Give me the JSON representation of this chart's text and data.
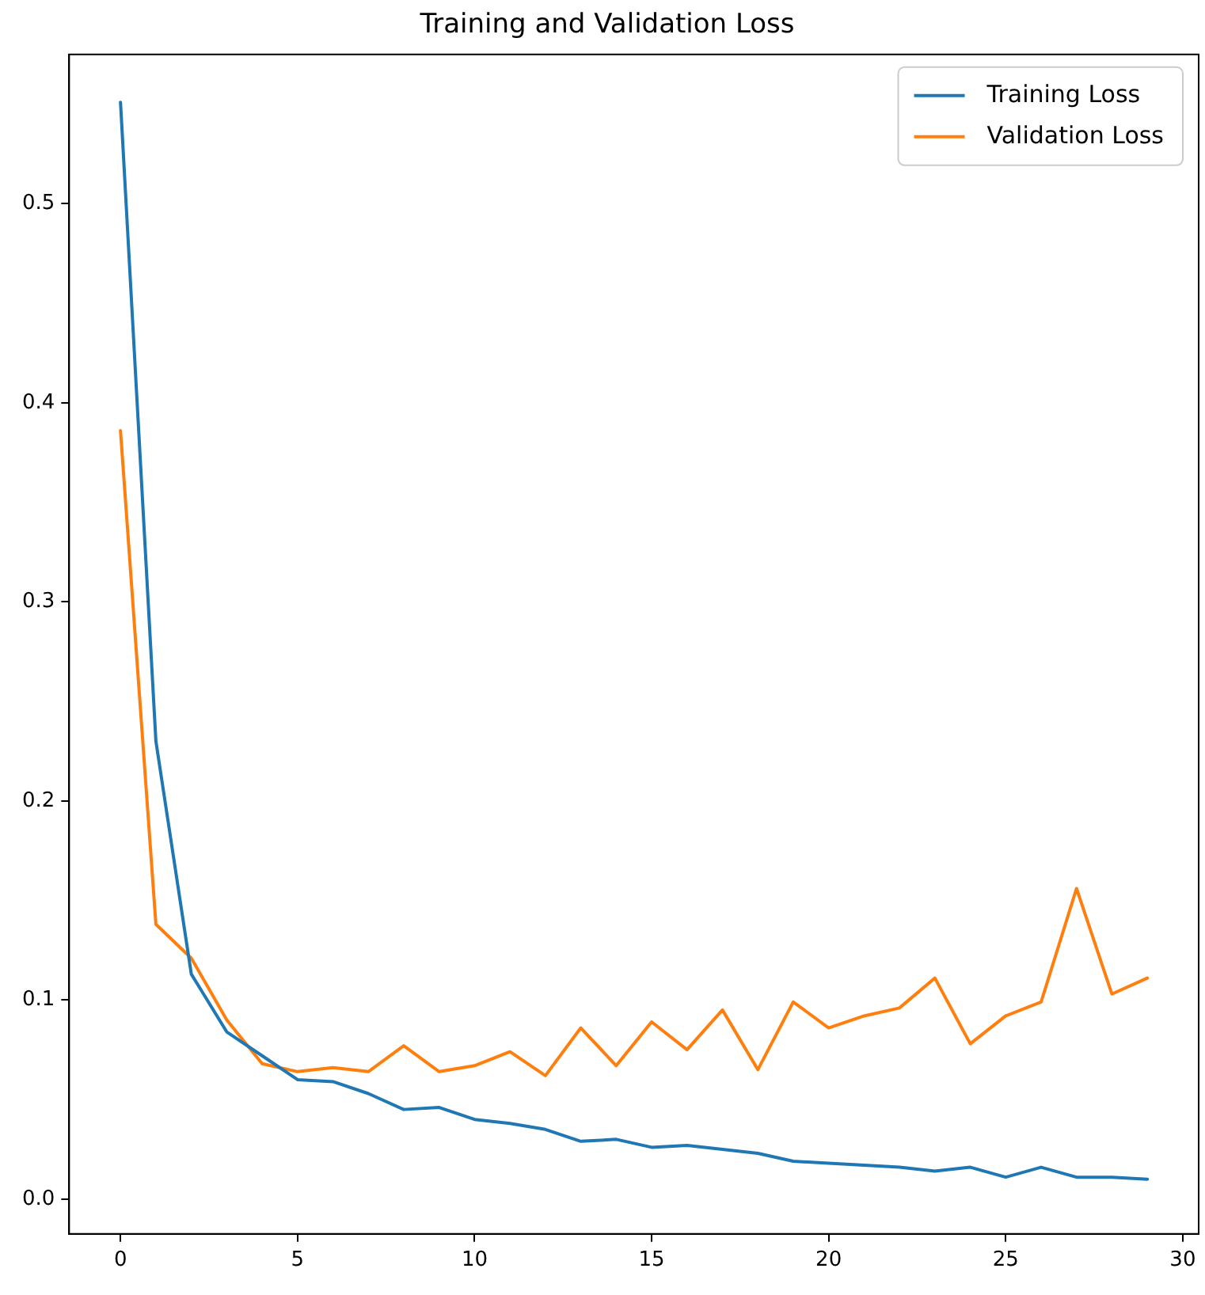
{
  "chart_data": {
    "type": "line",
    "title": "Training and Validation Loss",
    "x": [
      0,
      1,
      2,
      3,
      4,
      5,
      6,
      7,
      8,
      9,
      10,
      11,
      12,
      13,
      14,
      15,
      16,
      17,
      18,
      19,
      20,
      21,
      22,
      23,
      24,
      25,
      26,
      27,
      28,
      29
    ],
    "series": [
      {
        "name": "Training Loss",
        "color": "#1f77b4",
        "values": [
          0.551,
          0.23,
          0.113,
          0.084,
          0.072,
          0.06,
          0.059,
          0.053,
          0.045,
          0.046,
          0.04,
          0.038,
          0.035,
          0.029,
          0.03,
          0.026,
          0.027,
          0.025,
          0.023,
          0.019,
          0.018,
          0.017,
          0.016,
          0.014,
          0.016,
          0.011,
          0.016,
          0.011,
          0.011,
          0.01
        ]
      },
      {
        "name": "Validation Loss",
        "color": "#ff7f0e",
        "values": [
          0.386,
          0.138,
          0.121,
          0.09,
          0.068,
          0.064,
          0.066,
          0.064,
          0.077,
          0.064,
          0.067,
          0.074,
          0.062,
          0.086,
          0.067,
          0.089,
          0.075,
          0.095,
          0.065,
          0.099,
          0.086,
          0.092,
          0.096,
          0.111,
          0.078,
          0.092,
          0.099,
          0.156,
          0.103,
          0.111
        ]
      }
    ],
    "xlim": [
      -1.45,
      30.45
    ],
    "xticks": [
      0,
      5,
      10,
      15,
      20,
      25,
      30
    ],
    "ylim": [
      -0.0175,
      0.575
    ],
    "yticks": [
      {
        "value": 0,
        "label": "0.0"
      },
      {
        "value": 0.1,
        "label": "0.1"
      },
      {
        "value": 0.2,
        "label": "0.2"
      },
      {
        "value": 0.3,
        "label": "0.3"
      },
      {
        "value": 0.4,
        "label": "0.4"
      },
      {
        "value": 0.5,
        "label": "0.5"
      }
    ],
    "grid": false,
    "legend": "top right",
    "marker": "none",
    "line_style": "solid"
  }
}
